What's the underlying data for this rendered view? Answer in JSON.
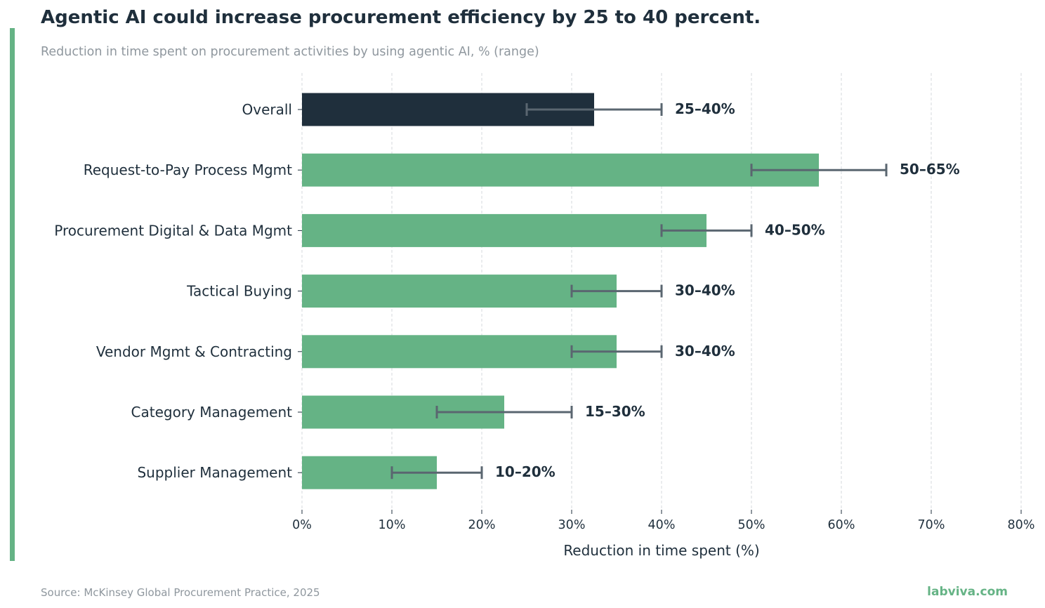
{
  "header": {
    "title": "Agentic AI could increase procurement efficiency by 25 to 40 percent.",
    "subtitle": "Reduction in time spent on procurement activities by using agentic AI, % (range)"
  },
  "footer": {
    "source": "Source: McKinsey Global Procurement Practice, 2025",
    "brand": "labviva.com"
  },
  "colors": {
    "highlight": "#1f2f3c",
    "bar": "#65b385",
    "accent": "#65b385",
    "error_bar": "#5a6670",
    "grid": "#d4d8dc",
    "muted_text": "#8f979e",
    "text": "#1f2f3c"
  },
  "chart_data": {
    "type": "bar",
    "orientation": "horizontal",
    "title": "Agentic AI could increase procurement efficiency by 25 to 40 percent.",
    "subtitle": "Reduction in time spent on procurement activities by using agentic AI, % (range)",
    "xlabel": "Reduction in time spent (%)",
    "ylabel": "",
    "xlim": [
      0,
      80
    ],
    "xticks": [
      0,
      10,
      20,
      30,
      40,
      50,
      60,
      70,
      80
    ],
    "tick_suffix": "%",
    "grid": "vertical dashed",
    "categories": [
      "Overall",
      "Request-to-Pay Process Mgmt",
      "Procurement Digital & Data Mgmt",
      "Tactical Buying",
      "Vendor Mgmt & Contracting",
      "Category Management",
      "Supplier Management"
    ],
    "values": [
      32.5,
      57.5,
      45,
      35,
      35,
      22.5,
      15
    ],
    "range_low": [
      25,
      50,
      40,
      30,
      30,
      15,
      10
    ],
    "range_high": [
      40,
      65,
      50,
      40,
      40,
      30,
      20
    ],
    "range_labels": [
      "25–40%",
      "50–65%",
      "40–50%",
      "30–40%",
      "30–40%",
      "15–30%",
      "10–20%"
    ],
    "highlighted": [
      "Overall"
    ]
  }
}
